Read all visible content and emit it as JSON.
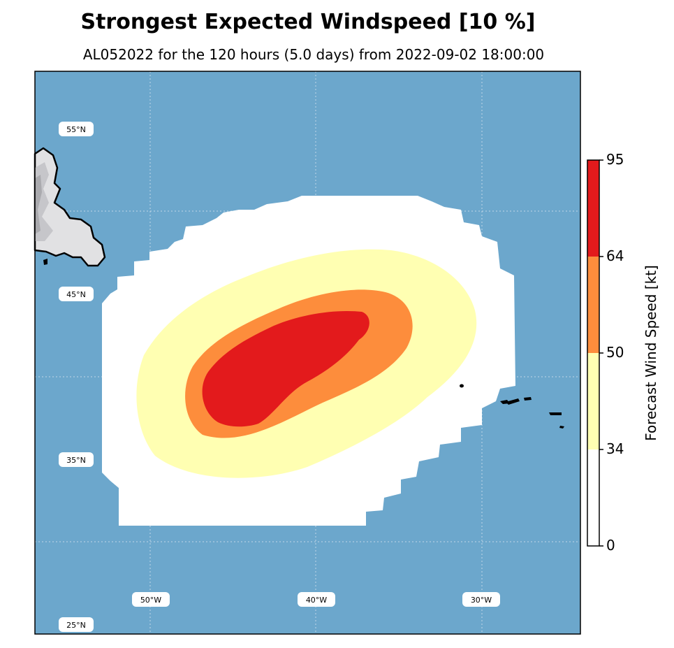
{
  "title": "Strongest Expected Windspeed [10 %]",
  "subtitle": "AL052022 for the 120 hours (5.0 days) from 2022-09-02 18:00:00",
  "map": {
    "ocean_color": "#6ca7cc",
    "land_color": "#e1e1e3",
    "lat_labels": [
      "55°N",
      "45°N",
      "35°N",
      "25°N"
    ],
    "lon_labels": [
      "50°W",
      "40°W",
      "30°W"
    ]
  },
  "colorbar": {
    "label": "Forecast Wind Speed [kt]",
    "ticks": [
      "0",
      "34",
      "50",
      "64",
      "95"
    ],
    "levels": [
      {
        "from": 0,
        "to": 34,
        "color": "#ffffff"
      },
      {
        "from": 34,
        "to": 50,
        "color": "#ffffb2"
      },
      {
        "from": 50,
        "to": 64,
        "color": "#fd8d3c"
      },
      {
        "from": 64,
        "to": 95,
        "color": "#e31a1c"
      }
    ]
  }
}
